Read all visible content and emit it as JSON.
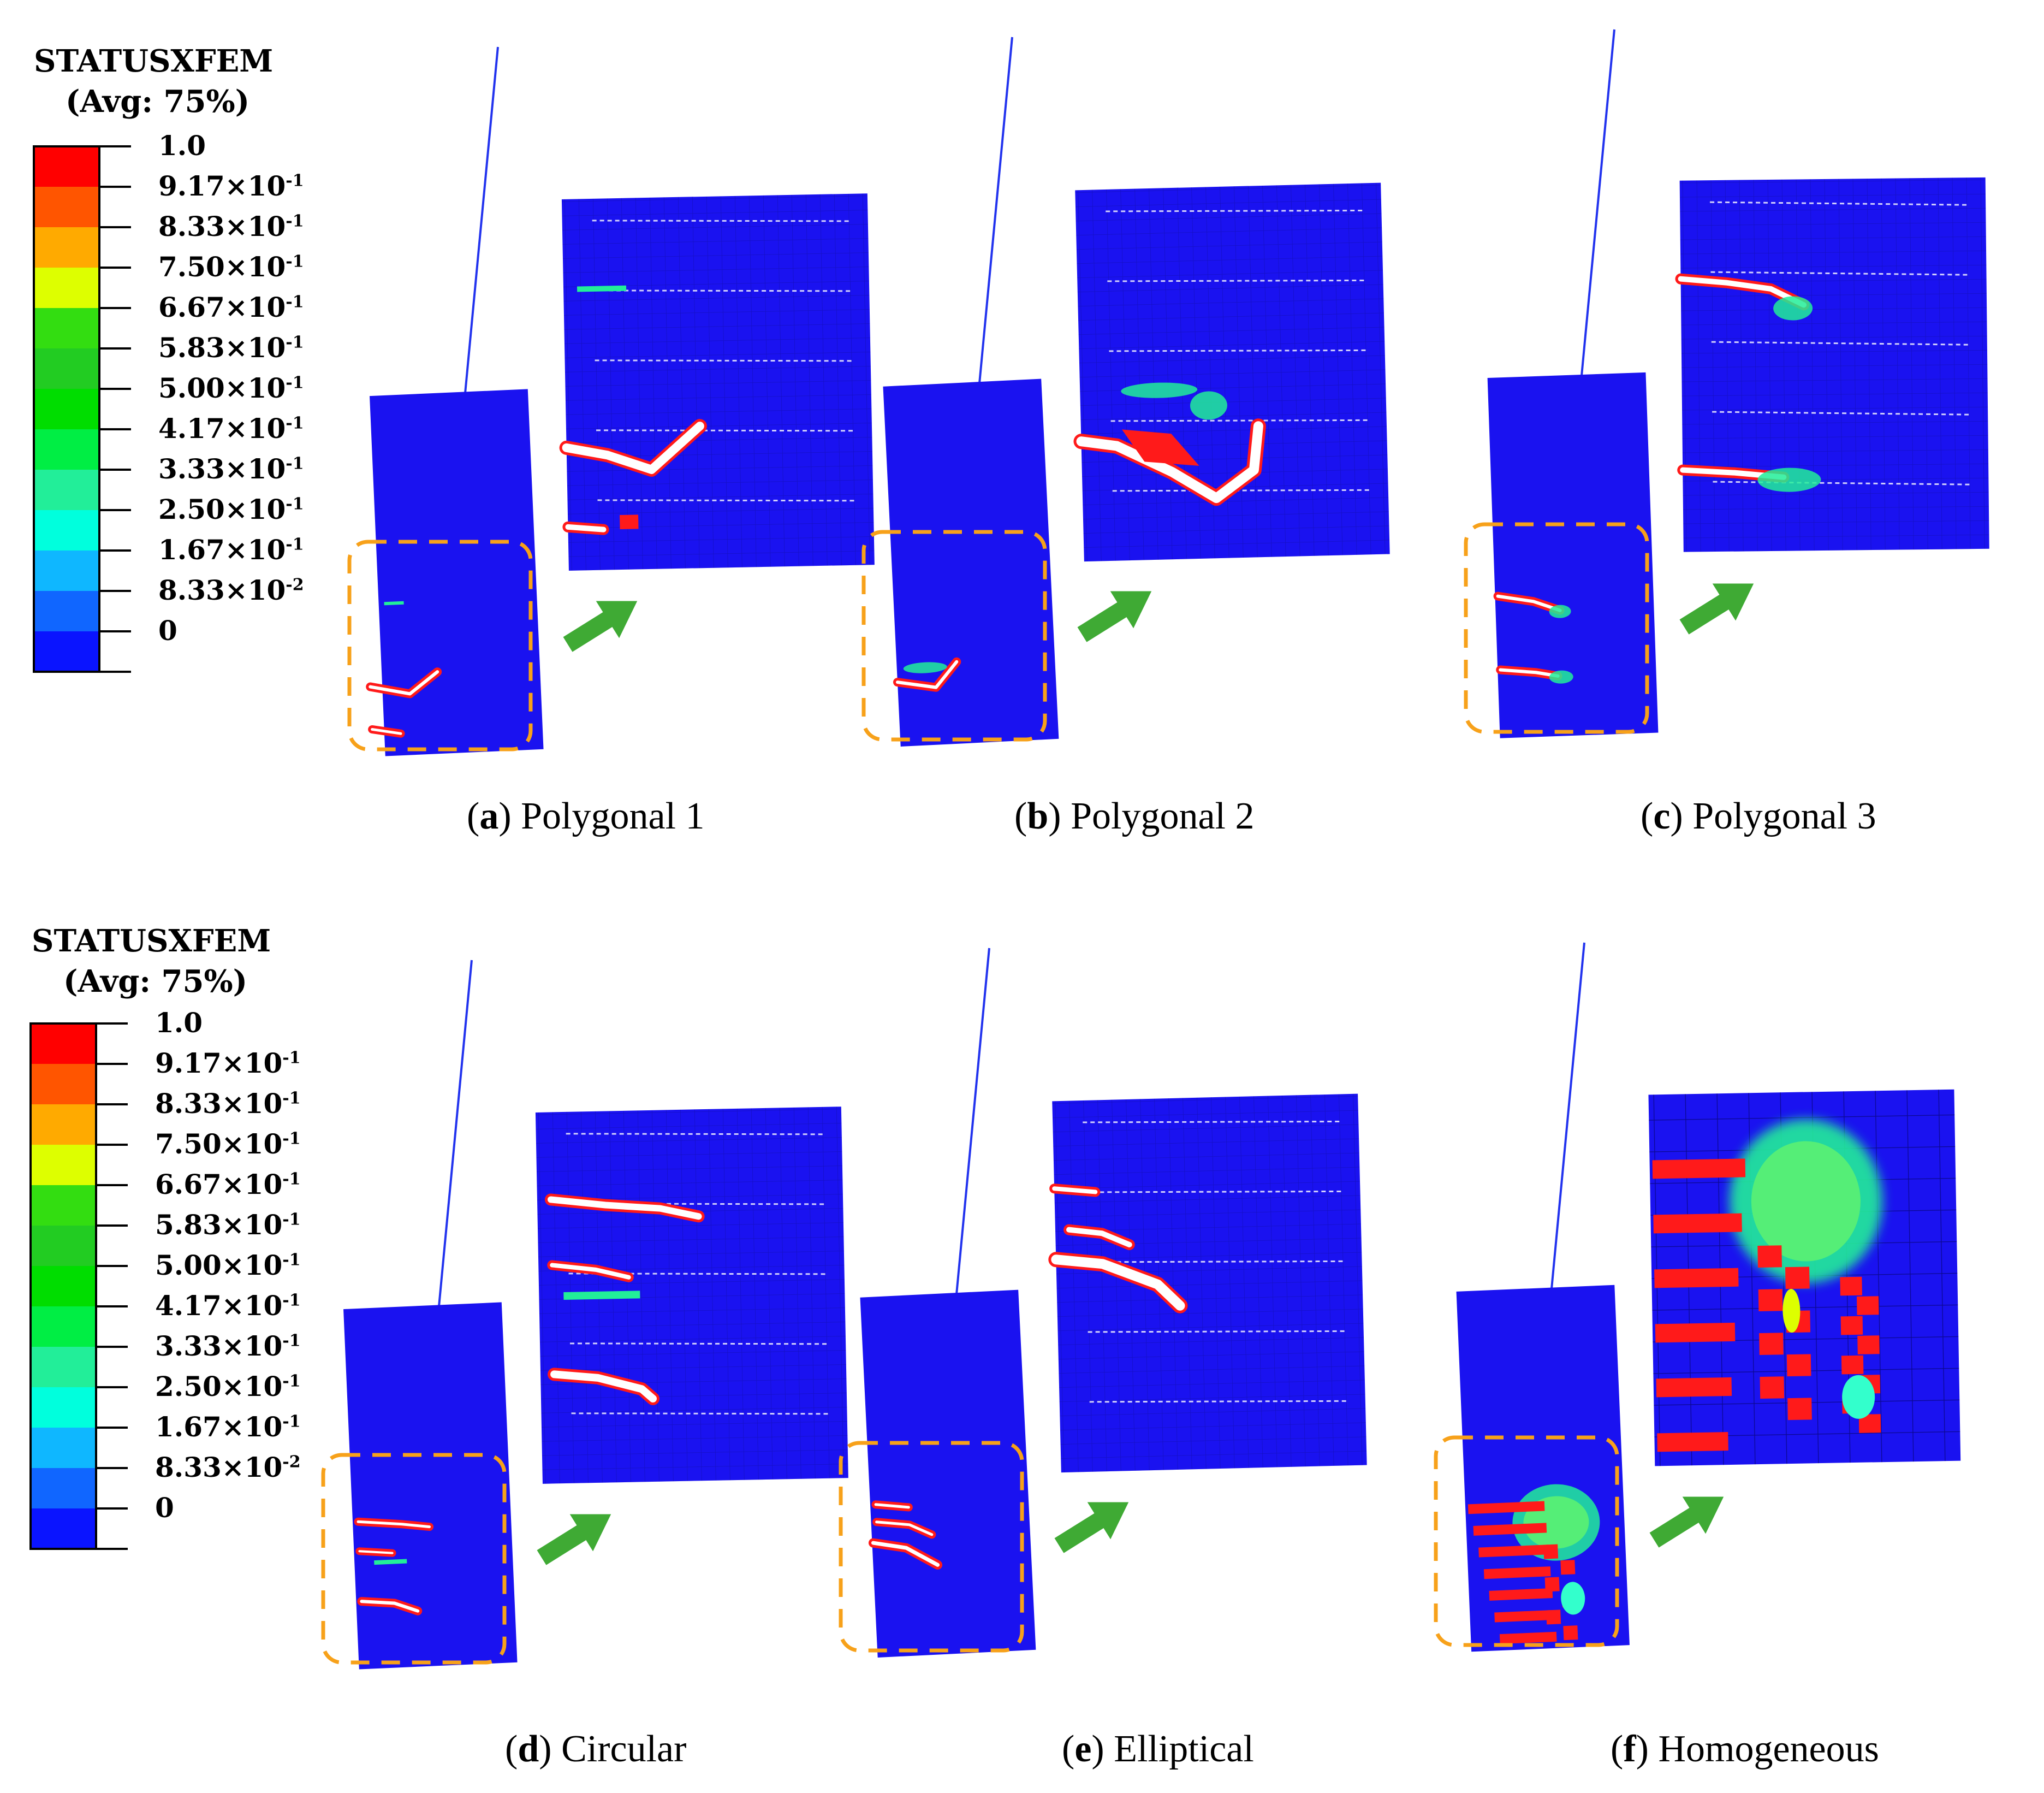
{
  "legends": [
    {
      "title": "STATUSXFEM",
      "subtitle": "(Avg: 75%)",
      "levels": [
        "1.0",
        "9.17×10-1",
        "8.33×10-1",
        "7.50×10-1",
        "6.67×10-1",
        "5.83×10-1",
        "5.00×10-1",
        "4.17×10-1",
        "3.33×10-1",
        "2.50×10-1",
        "1.67×10-1",
        "8.33×10-2",
        "0"
      ]
    },
    {
      "title": "STATUSXFEM",
      "subtitle": "(Avg: 75%)",
      "levels": [
        "1.0",
        "9.17×10-1",
        "8.33×10-1",
        "7.50×10-1",
        "6.67×10-1",
        "5.83×10-1",
        "5.00×10-1",
        "4.17×10-1",
        "3.33×10-1",
        "2.50×10-1",
        "1.67×10-1",
        "8.33×10-2",
        "0"
      ]
    }
  ],
  "colorbar": [
    "#ff0000",
    "#ff5500",
    "#ffaa00",
    "#ddff00",
    "#33dd11",
    "#22cc22",
    "#00dd00",
    "#00ee44",
    "#22ee99",
    "#00ffdd",
    "#0fb7ff",
    "#1066ff",
    "#0a14ff"
  ],
  "colors": {
    "model_blue": "#1a12f0",
    "crack_red": "#ff1a1a",
    "crack_white": "#ffffff",
    "arrow_green": "#3faa34",
    "highlight_orange": "#f7a11a",
    "load_line": "#2233ee"
  },
  "panels": [
    {
      "letter": "a",
      "label": "Polygonal 1"
    },
    {
      "letter": "b",
      "label": "Polygonal 2"
    },
    {
      "letter": "c",
      "label": "Polygonal 3"
    },
    {
      "letter": "d",
      "label": "Circular"
    },
    {
      "letter": "e",
      "label": "Elliptical"
    },
    {
      "letter": "f",
      "label": "Homogeneous"
    }
  ]
}
